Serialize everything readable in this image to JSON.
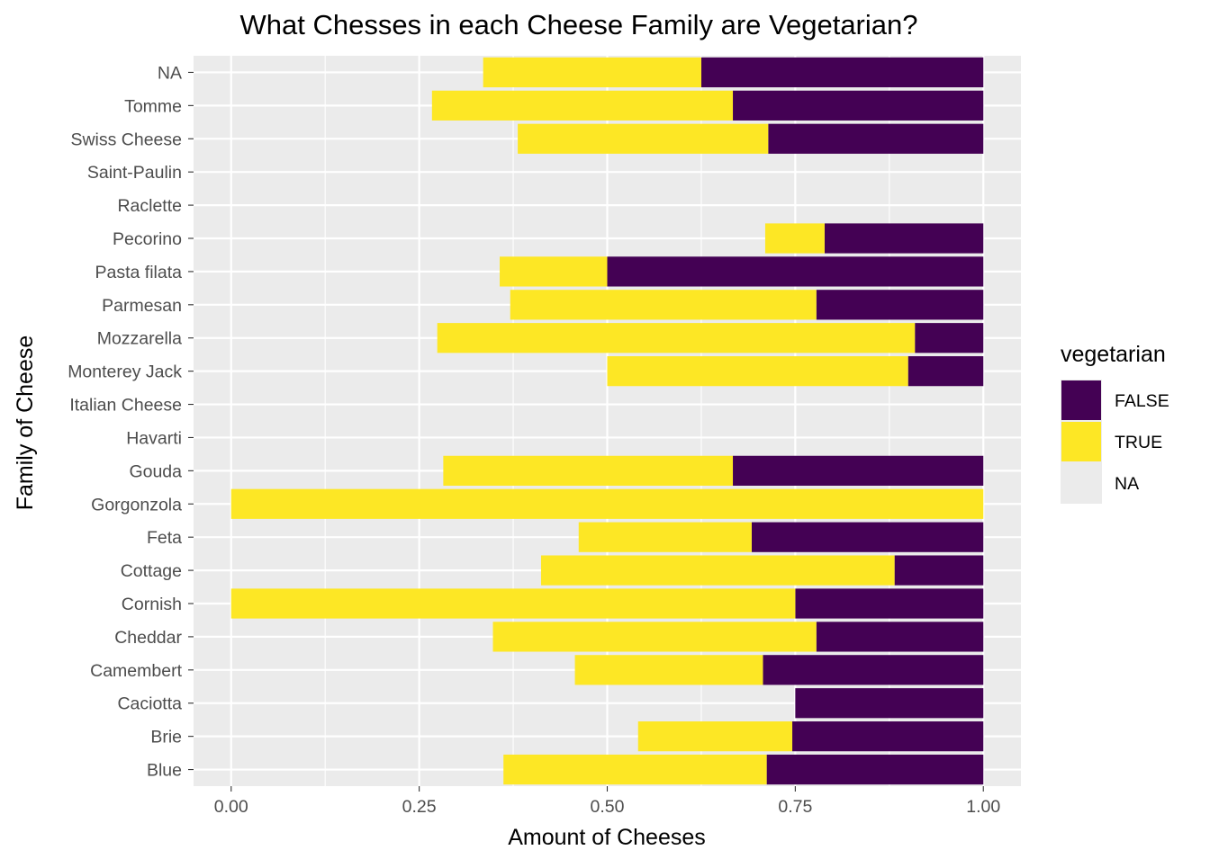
{
  "chart_data": {
    "type": "bar",
    "orientation": "horizontal",
    "stacked": true,
    "title": "What Chesses in each Cheese Family are Vegetarian?",
    "xlabel": "Amount of Cheeses",
    "ylabel": "Family of Cheese",
    "xlim": [
      -0.05,
      1.05
    ],
    "x_ticks": [
      "0.00",
      "0.25",
      "0.50",
      "0.75",
      "1.00"
    ],
    "x_tick_values": [
      0,
      0.25,
      0.5,
      0.75,
      1.0
    ],
    "grid": true,
    "legend_position": "right",
    "categories": [
      "Blue",
      "Brie",
      "Caciotta",
      "Camembert",
      "Cheddar",
      "Cornish",
      "Cottage",
      "Feta",
      "Gorgonzola",
      "Gouda",
      "Havarti",
      "Italian Cheese",
      "Monterey Jack",
      "Mozzarella",
      "Parmesan",
      "Pasta filata",
      "Pecorino",
      "Raclette",
      "Saint-Paulin",
      "Swiss Cheese",
      "Tomme",
      "NA"
    ],
    "legend": {
      "title": "vegetarian",
      "entries": [
        {
          "label": "FALSE",
          "color": "#440154"
        },
        {
          "label": "TRUE",
          "color": "#FDE725"
        },
        {
          "label": "NA",
          "color": "#e6e6e6"
        }
      ]
    },
    "series": [
      {
        "name": "FALSE",
        "color": "#440154",
        "values": [
          0.288,
          0.254,
          0.25,
          0.293,
          0.222,
          0.25,
          0.118,
          0.308,
          0.0,
          0.333,
          0,
          0,
          0.1,
          0.091,
          0.222,
          0.5,
          0.211,
          0,
          0,
          0.286,
          0.333,
          0.375
        ]
      },
      {
        "name": "TRUE",
        "color": "#FDE725",
        "values": [
          0.35,
          0.205,
          0.0,
          0.25,
          0.43,
          0.75,
          0.47,
          0.23,
          1.0,
          0.385,
          0,
          0,
          0.4,
          0.635,
          0.407,
          0.143,
          0.079,
          0,
          0,
          0.333,
          0.4,
          0.29
        ]
      },
      {
        "name": "NA",
        "color": "#e6e6e6",
        "values": [
          0.362,
          0.541,
          0.75,
          0.457,
          0.348,
          0.0,
          0.412,
          0.462,
          0.0,
          0.282,
          1,
          1,
          0.5,
          0.274,
          0.371,
          0.357,
          0.71,
          1,
          1,
          0.381,
          0.267,
          0.335
        ]
      }
    ]
  }
}
